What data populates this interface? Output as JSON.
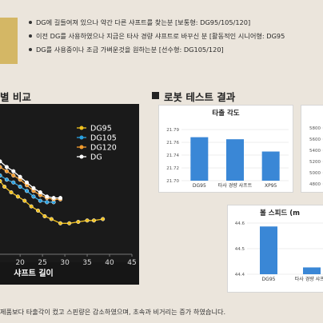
{
  "bullets": [
    "DG에 길들여져 있으나 약간 다른 샤프트를 찾는분 [보통형: DG95/105/120]",
    "이전 DG를 사용하였으나 지금은 타사 경량 샤프트로 바꾸신 분 [활동적인 시니어형: DG95",
    "DG를 사용중이나 조금 가벼운것을 원하는분 [선수형: DG105/120]"
  ],
  "left_header": "별 비교",
  "robot_header": "로봇 테스트 결과",
  "footer": "제품보다 타출각이 컸고 스핀량은 감소하였으며, 초속과 비거리는 증가 하였습니다.",
  "colors": {
    "dg95": "#f2c21f",
    "dg105": "#2aa1e0",
    "dg120": "#f39c2e",
    "dg": "#ffffff",
    "bar": "#3a87d6",
    "gold": "#d4b765"
  },
  "chart_data": [
    {
      "type": "line",
      "xlabel": "샤프트 길이",
      "xticks": [
        "20",
        "25",
        "30",
        "35",
        "40",
        "45"
      ],
      "xlim": [
        15.5,
        45
      ],
      "ylim": [
        0,
        1
      ],
      "legend_position": "top-right",
      "series": [
        {
          "name": "DG95",
          "color": "#f2c21f",
          "x": [
            15.5,
            16.5,
            18,
            19.5,
            21,
            22.5,
            24,
            25.5,
            27,
            29,
            31,
            33,
            35,
            36.5,
            38.5
          ],
          "y": [
            0.52,
            0.48,
            0.44,
            0.41,
            0.38,
            0.34,
            0.31,
            0.27,
            0.25,
            0.22,
            0.22,
            0.23,
            0.24,
            0.24,
            0.25
          ]
        },
        {
          "name": "DG105",
          "color": "#2aa1e0",
          "x": [
            15.5,
            17,
            18.5,
            20,
            21.5,
            23,
            24.5,
            26,
            27.5
          ],
          "y": [
            0.56,
            0.53,
            0.51,
            0.48,
            0.45,
            0.41,
            0.38,
            0.37,
            0.37
          ]
        },
        {
          "name": "DG120",
          "color": "#f39c2e",
          "x": [
            15.5,
            17,
            18.5,
            20,
            21.5,
            23,
            24.5,
            26,
            27.5,
            29
          ],
          "y": [
            0.62,
            0.59,
            0.56,
            0.53,
            0.49,
            0.45,
            0.42,
            0.4,
            0.39,
            0.39
          ]
        },
        {
          "name": "DG",
          "color": "#ffffff",
          "x": [
            15.5,
            17,
            18.5,
            20,
            21.5,
            23,
            24.5,
            26,
            27.5,
            29
          ],
          "y": [
            0.66,
            0.62,
            0.59,
            0.55,
            0.51,
            0.47,
            0.44,
            0.41,
            0.4,
            0.4
          ]
        }
      ]
    },
    {
      "type": "bar",
      "title": "타출 각도",
      "categories": [
        "DG95",
        "타사 경량 샤프트",
        "XP95"
      ],
      "values": [
        21.785,
        21.781,
        21.757
      ],
      "yticks": [
        "21.79",
        "21.76",
        "21.74",
        "21.72",
        "21.70"
      ],
      "ylim": [
        21.7,
        21.8
      ],
      "grid": true
    },
    {
      "type": "bar",
      "title": "볼 스피드 (m",
      "categories": [
        "DG95",
        "타사 경량 샤프트"
      ],
      "values": [
        44.68,
        44.44
      ],
      "yticks": [
        "44.6",
        "44.5",
        "44.4"
      ],
      "ylim": [
        44.4,
        44.7
      ],
      "grid": true
    },
    {
      "type": "bar",
      "yticks": [
        "5800",
        "5600",
        "5400",
        "5200",
        "5000",
        "4800"
      ],
      "grid": true
    }
  ]
}
